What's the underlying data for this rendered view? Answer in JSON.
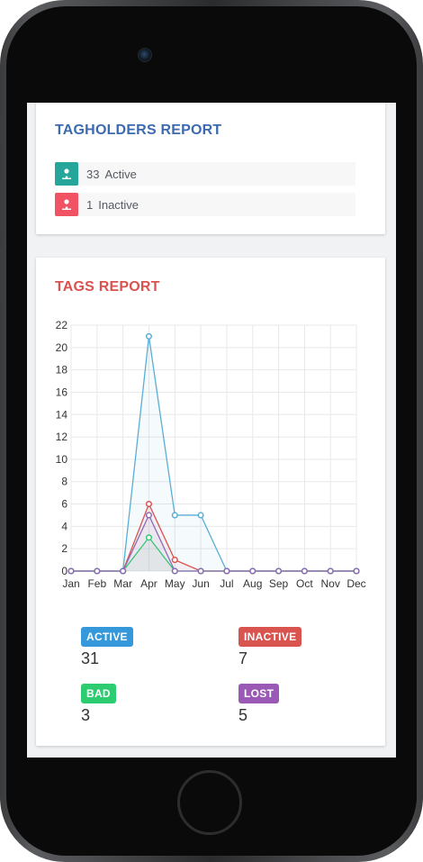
{
  "tagholders": {
    "title": "TAGHOLDERS REPORT",
    "rows": [
      {
        "count": "33",
        "label": "Active",
        "color": "#26a69a"
      },
      {
        "count": "1",
        "label": "Inactive",
        "color": "#ef5364"
      }
    ]
  },
  "tags": {
    "title": "TAGS REPORT",
    "legend": [
      {
        "label": "ACTIVE",
        "value": "31",
        "color": "#3498db"
      },
      {
        "label": "INACTIVE",
        "value": "7",
        "color": "#d9534f"
      },
      {
        "label": "BAD",
        "value": "3",
        "color": "#2ecc71"
      },
      {
        "label": "LOST",
        "value": "5",
        "color": "#9b59b6"
      }
    ]
  },
  "chart_data": {
    "type": "line",
    "categories": [
      "Jan",
      "Feb",
      "Mar",
      "Apr",
      "May",
      "Jun",
      "Jul",
      "Aug",
      "Sep",
      "Oct",
      "Nov",
      "Dec"
    ],
    "ylim": [
      0,
      22
    ],
    "yticks": [
      0,
      2,
      4,
      6,
      8,
      10,
      12,
      14,
      16,
      18,
      20,
      22
    ],
    "grid": true,
    "series": [
      {
        "name": "ACTIVE",
        "color": "#5aaed6",
        "values": [
          0,
          0,
          0,
          21,
          5,
          5,
          0,
          0,
          0,
          0,
          0,
          0
        ]
      },
      {
        "name": "INACTIVE",
        "color": "#d9534f",
        "values": [
          0,
          0,
          0,
          6,
          1,
          0,
          0,
          0,
          0,
          0,
          0,
          0
        ]
      },
      {
        "name": "BAD",
        "color": "#2ecc71",
        "values": [
          0,
          0,
          0,
          3,
          0,
          0,
          0,
          0,
          0,
          0,
          0,
          0
        ]
      },
      {
        "name": "LOST",
        "color": "#8e6bb8",
        "values": [
          0,
          0,
          0,
          5,
          0,
          0,
          0,
          0,
          0,
          0,
          0,
          0
        ]
      }
    ]
  }
}
